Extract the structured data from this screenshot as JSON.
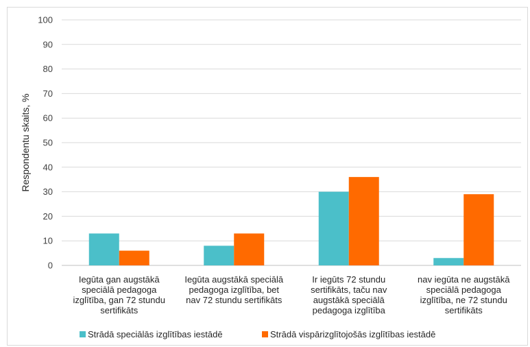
{
  "chart_data": {
    "type": "bar",
    "ylabel": "Respondentu skaits, %",
    "ylim": [
      0,
      100
    ],
    "yticks": [
      0,
      10,
      20,
      30,
      40,
      50,
      60,
      70,
      80,
      90,
      100
    ],
    "grid": true,
    "legend_position": "bottom",
    "categories": [
      [
        "Iegūta gan augstākā",
        "speciālā pedagoga",
        "izglītība, gan 72 stundu",
        "sertifikāts"
      ],
      [
        "Iegūta augstākā speciālā",
        "pedagoga izglītība, bet",
        "nav 72 stundu sertifikāts"
      ],
      [
        "Ir iegūts 72 stundu",
        "sertifikāts, taču nav",
        "augstākā speciālā",
        "pedagoga izglītība"
      ],
      [
        "nav iegūta ne augstākā",
        "speciālā pedagoga",
        "izglītība, ne 72 stundu",
        "sertifikāts"
      ]
    ],
    "series": [
      {
        "name": "Strādā speciālās izglītības iestādē",
        "color": "#4bbfc9",
        "values": [
          13,
          8,
          30,
          3
        ]
      },
      {
        "name": "Strādā vispārizglītojošās izglītības iestādē",
        "color": "#ff6a00",
        "values": [
          6,
          13,
          36,
          29
        ]
      }
    ]
  }
}
